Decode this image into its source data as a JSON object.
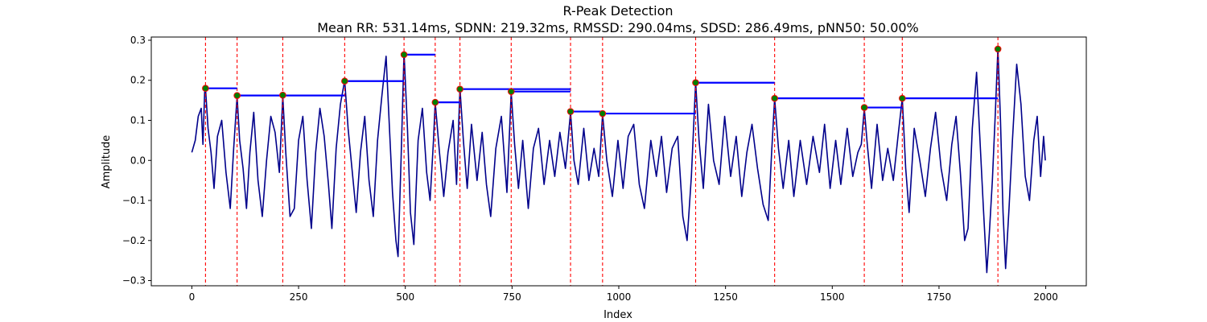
{
  "chart_data": {
    "type": "line",
    "title": "R-Peak Detection",
    "subtitle": "Mean RR: 531.14ms, SDNN: 219.32ms, RMSSD: 290.04ms, SDSD: 286.49ms, pNN50: 50.00%",
    "xlabel": "Index",
    "ylabel": "Amplitude",
    "xlim": [
      -95,
      2095
    ],
    "ylim": [
      -0.313,
      0.308
    ],
    "xticks": [
      0,
      250,
      500,
      750,
      1000,
      1250,
      1500,
      1750,
      2000
    ],
    "yticks": [
      -0.3,
      -0.2,
      -0.1,
      0.0,
      0.1,
      0.2,
      0.3
    ],
    "grid": false,
    "colors": {
      "signal": "#00008b",
      "peak_line": "#ff0000",
      "peak_marker_fill": "#008000",
      "peak_marker_edge": "#ff0000",
      "rr_segment": "#0000ff"
    },
    "signal_keypoints": [
      [
        0,
        0.02
      ],
      [
        8,
        0.05
      ],
      [
        15,
        0.11
      ],
      [
        22,
        0.13
      ],
      [
        26,
        0.04
      ],
      [
        30,
        0.17
      ],
      [
        32,
        0.18
      ],
      [
        38,
        0.08
      ],
      [
        45,
        0.02
      ],
      [
        52,
        -0.07
      ],
      [
        60,
        0.06
      ],
      [
        70,
        0.1
      ],
      [
        80,
        -0.03
      ],
      [
        90,
        -0.12
      ],
      [
        98,
        0.03
      ],
      [
        106,
        0.16
      ],
      [
        112,
        0.05
      ],
      [
        120,
        -0.02
      ],
      [
        128,
        -0.12
      ],
      [
        136,
        0.02
      ],
      [
        145,
        0.12
      ],
      [
        155,
        -0.05
      ],
      [
        165,
        -0.14
      ],
      [
        175,
        0.0
      ],
      [
        185,
        0.11
      ],
      [
        195,
        0.07
      ],
      [
        205,
        -0.03
      ],
      [
        213,
        0.16
      ],
      [
        220,
        0.02
      ],
      [
        230,
        -0.14
      ],
      [
        240,
        -0.12
      ],
      [
        250,
        0.05
      ],
      [
        260,
        0.11
      ],
      [
        270,
        -0.05
      ],
      [
        280,
        -0.17
      ],
      [
        290,
        0.02
      ],
      [
        300,
        0.13
      ],
      [
        310,
        0.06
      ],
      [
        320,
        -0.06
      ],
      [
        328,
        -0.17
      ],
      [
        338,
        0.03
      ],
      [
        348,
        0.14
      ],
      [
        358,
        0.2
      ],
      [
        366,
        0.08
      ],
      [
        375,
        -0.02
      ],
      [
        385,
        -0.13
      ],
      [
        395,
        0.02
      ],
      [
        405,
        0.11
      ],
      [
        415,
        -0.05
      ],
      [
        425,
        -0.14
      ],
      [
        435,
        0.05
      ],
      [
        445,
        0.16
      ],
      [
        455,
        0.26
      ],
      [
        462,
        0.1
      ],
      [
        470,
        -0.08
      ],
      [
        478,
        -0.2
      ],
      [
        483,
        -0.24
      ],
      [
        490,
        0.0
      ],
      [
        497,
        0.27
      ],
      [
        505,
        0.08
      ],
      [
        512,
        -0.13
      ],
      [
        520,
        -0.21
      ],
      [
        530,
        0.05
      ],
      [
        540,
        0.13
      ],
      [
        550,
        -0.03
      ],
      [
        558,
        -0.1
      ],
      [
        566,
        0.05
      ],
      [
        570,
        0.145
      ],
      [
        580,
        0.02
      ],
      [
        590,
        -0.09
      ],
      [
        600,
        0.02
      ],
      [
        612,
        0.1
      ],
      [
        620,
        -0.06
      ],
      [
        628,
        0.18
      ],
      [
        636,
        0.05
      ],
      [
        645,
        -0.07
      ],
      [
        655,
        0.09
      ],
      [
        668,
        -0.05
      ],
      [
        680,
        0.07
      ],
      [
        690,
        -0.06
      ],
      [
        700,
        -0.14
      ],
      [
        712,
        0.03
      ],
      [
        725,
        0.11
      ],
      [
        738,
        -0.08
      ],
      [
        748,
        0.17
      ],
      [
        756,
        0.04
      ],
      [
        765,
        -0.07
      ],
      [
        775,
        0.05
      ],
      [
        788,
        -0.12
      ],
      [
        800,
        0.03
      ],
      [
        812,
        0.08
      ],
      [
        825,
        -0.06
      ],
      [
        838,
        0.05
      ],
      [
        850,
        -0.04
      ],
      [
        862,
        0.07
      ],
      [
        875,
        -0.02
      ],
      [
        887,
        0.12
      ],
      [
        895,
        0.0
      ],
      [
        905,
        -0.06
      ],
      [
        918,
        0.08
      ],
      [
        930,
        -0.05
      ],
      [
        942,
        0.03
      ],
      [
        953,
        -0.04
      ],
      [
        962,
        0.115
      ],
      [
        972,
        0.0
      ],
      [
        985,
        -0.09
      ],
      [
        998,
        0.05
      ],
      [
        1010,
        -0.07
      ],
      [
        1022,
        0.06
      ],
      [
        1035,
        0.09
      ],
      [
        1048,
        -0.06
      ],
      [
        1060,
        -0.12
      ],
      [
        1075,
        0.05
      ],
      [
        1088,
        -0.04
      ],
      [
        1100,
        0.06
      ],
      [
        1112,
        -0.08
      ],
      [
        1125,
        0.03
      ],
      [
        1138,
        0.06
      ],
      [
        1150,
        -0.14
      ],
      [
        1160,
        -0.2
      ],
      [
        1170,
        -0.04
      ],
      [
        1180,
        0.195
      ],
      [
        1188,
        0.05
      ],
      [
        1198,
        -0.07
      ],
      [
        1210,
        0.14
      ],
      [
        1222,
        0.0
      ],
      [
        1235,
        -0.06
      ],
      [
        1248,
        0.11
      ],
      [
        1262,
        -0.04
      ],
      [
        1275,
        0.06
      ],
      [
        1288,
        -0.09
      ],
      [
        1300,
        0.02
      ],
      [
        1312,
        0.09
      ],
      [
        1325,
        -0.02
      ],
      [
        1338,
        -0.11
      ],
      [
        1350,
        -0.15
      ],
      [
        1358,
        0.02
      ],
      [
        1365,
        0.155
      ],
      [
        1374,
        0.03
      ],
      [
        1385,
        -0.07
      ],
      [
        1398,
        0.05
      ],
      [
        1410,
        -0.09
      ],
      [
        1425,
        0.05
      ],
      [
        1440,
        -0.06
      ],
      [
        1455,
        0.06
      ],
      [
        1470,
        -0.03
      ],
      [
        1482,
        0.09
      ],
      [
        1495,
        -0.07
      ],
      [
        1508,
        0.05
      ],
      [
        1520,
        -0.06
      ],
      [
        1535,
        0.08
      ],
      [
        1548,
        -0.04
      ],
      [
        1560,
        0.02
      ],
      [
        1568,
        0.04
      ],
      [
        1575,
        0.13
      ],
      [
        1582,
        0.04
      ],
      [
        1592,
        -0.07
      ],
      [
        1605,
        0.09
      ],
      [
        1618,
        -0.05
      ],
      [
        1630,
        0.03
      ],
      [
        1643,
        -0.05
      ],
      [
        1655,
        0.07
      ],
      [
        1664,
        0.155
      ],
      [
        1672,
        -0.02
      ],
      [
        1680,
        -0.13
      ],
      [
        1692,
        0.08
      ],
      [
        1705,
        0.0
      ],
      [
        1718,
        -0.09
      ],
      [
        1730,
        0.03
      ],
      [
        1742,
        0.12
      ],
      [
        1755,
        -0.02
      ],
      [
        1768,
        -0.1
      ],
      [
        1780,
        0.04
      ],
      [
        1790,
        0.11
      ],
      [
        1800,
        -0.03
      ],
      [
        1810,
        -0.2
      ],
      [
        1818,
        -0.17
      ],
      [
        1828,
        0.08
      ],
      [
        1838,
        0.22
      ],
      [
        1846,
        0.05
      ],
      [
        1854,
        -0.12
      ],
      [
        1862,
        -0.28
      ],
      [
        1868,
        -0.18
      ],
      [
        1875,
        -0.05
      ],
      [
        1882,
        0.12
      ],
      [
        1888,
        0.28
      ],
      [
        1894,
        0.1
      ],
      [
        1900,
        -0.13
      ],
      [
        1906,
        -0.27
      ],
      [
        1914,
        -0.12
      ],
      [
        1922,
        0.05
      ],
      [
        1932,
        0.24
      ],
      [
        1942,
        0.14
      ],
      [
        1952,
        -0.04
      ],
      [
        1962,
        -0.1
      ],
      [
        1972,
        0.05
      ],
      [
        1980,
        0.11
      ],
      [
        1988,
        -0.04
      ],
      [
        1995,
        0.06
      ],
      [
        1999,
        0.0
      ]
    ],
    "peaks": [
      {
        "x": 32,
        "y": 0.18
      },
      {
        "x": 106,
        "y": 0.162
      },
      {
        "x": 213,
        "y": 0.163
      },
      {
        "x": 358,
        "y": 0.198
      },
      {
        "x": 497,
        "y": 0.264
      },
      {
        "x": 570,
        "y": 0.145
      },
      {
        "x": 628,
        "y": 0.178
      },
      {
        "x": 748,
        "y": 0.172
      },
      {
        "x": 887,
        "y": 0.122
      },
      {
        "x": 962,
        "y": 0.117
      },
      {
        "x": 1180,
        "y": 0.194
      },
      {
        "x": 1365,
        "y": 0.155
      },
      {
        "x": 1575,
        "y": 0.132
      },
      {
        "x": 1664,
        "y": 0.155
      },
      {
        "x": 1888,
        "y": 0.278
      }
    ],
    "rr_segments": [
      {
        "x1": 32,
        "x2": 106,
        "y": 0.18
      },
      {
        "x1": 106,
        "x2": 358,
        "y": 0.162
      },
      {
        "x1": 358,
        "x2": 497,
        "y": 0.198
      },
      {
        "x1": 497,
        "x2": 570,
        "y": 0.264
      },
      {
        "x1": 570,
        "x2": 628,
        "y": 0.145
      },
      {
        "x1": 628,
        "x2": 887,
        "y": 0.178
      },
      {
        "x1": 748,
        "x2": 887,
        "y": 0.172
      },
      {
        "x1": 887,
        "x2": 962,
        "y": 0.122
      },
      {
        "x1": 962,
        "x2": 1180,
        "y": 0.117
      },
      {
        "x1": 1180,
        "x2": 1365,
        "y": 0.194
      },
      {
        "x1": 1365,
        "x2": 1575,
        "y": 0.155
      },
      {
        "x1": 1575,
        "x2": 1664,
        "y": 0.132
      },
      {
        "x1": 1664,
        "x2": 1888,
        "y": 0.155
      }
    ]
  }
}
